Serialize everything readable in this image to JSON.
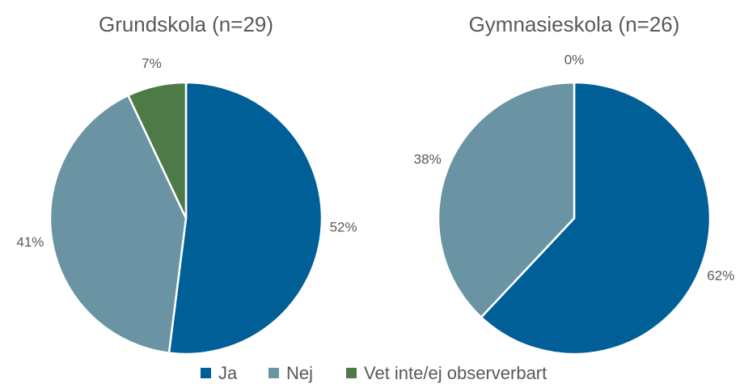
{
  "chart_data": [
    {
      "type": "pie",
      "title": "Grundskola (n=29)",
      "categories": [
        "Ja",
        "Nej",
        "Vet inte/ej observerbart"
      ],
      "values": [
        52,
        41,
        7
      ],
      "value_labels": [
        "52%",
        "41%",
        "7%"
      ],
      "colors": [
        "#005f96",
        "#6a93a3",
        "#4e7a48"
      ]
    },
    {
      "type": "pie",
      "title": "Gymnasieskola (n=26)",
      "categories": [
        "Ja",
        "Nej",
        "Vet inte/ej observerbart"
      ],
      "values": [
        62,
        38,
        0
      ],
      "value_labels": [
        "62%",
        "38%",
        "0%"
      ],
      "colors": [
        "#005f96",
        "#6a93a3",
        "#4e7a48"
      ]
    }
  ]
}
